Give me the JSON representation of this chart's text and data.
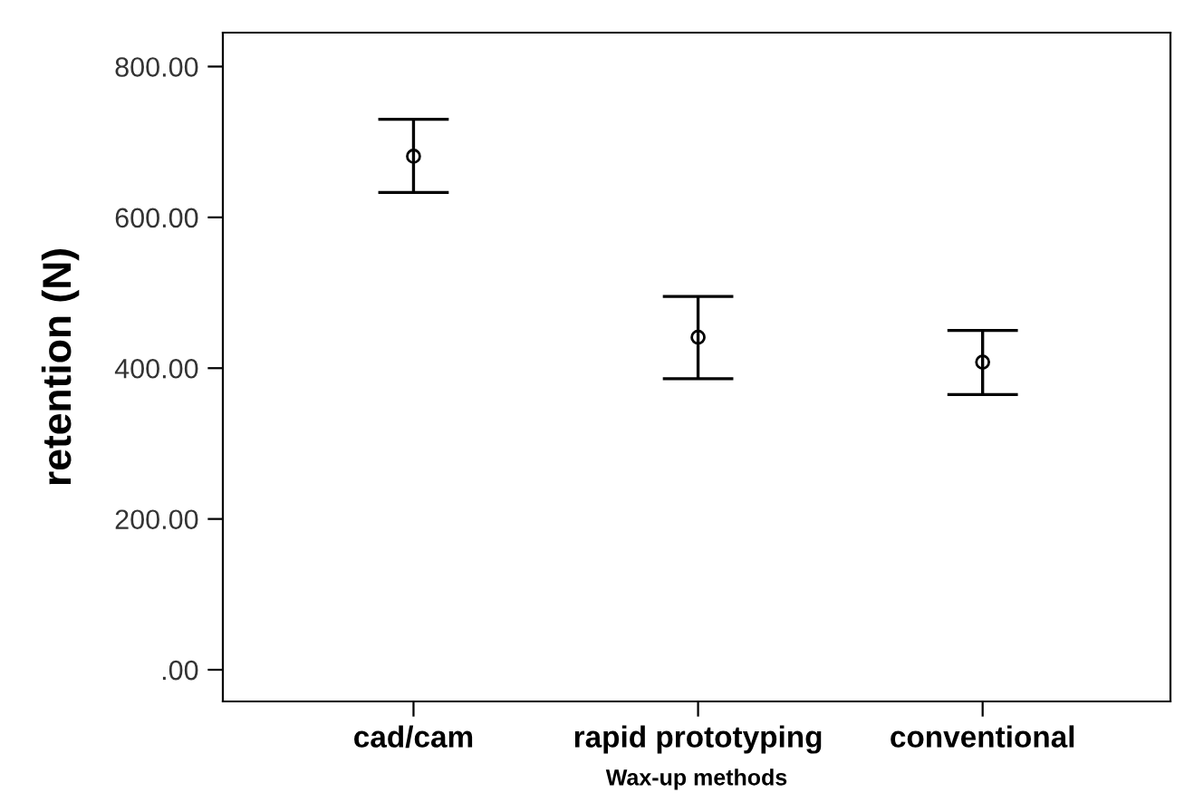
{
  "chart_data": {
    "type": "scatter",
    "xlabel": "Wax-up methods",
    "ylabel": "retention (N)",
    "categories": [
      "cad/cam",
      "rapid prototyping",
      "conventional"
    ],
    "series": [
      {
        "color": "#000000",
        "values": [
          681,
          441,
          408
        ],
        "errors": [
          [
            633,
            730
          ],
          [
            386,
            495
          ],
          [
            365,
            450
          ]
        ]
      }
    ],
    "marker": "circle",
    "ylim": [
      -42,
      845
    ],
    "yticks": [
      {
        "value": 0,
        "label": ".00"
      },
      {
        "value": 200,
        "label": "200.00"
      },
      {
        "value": 400,
        "label": "400.00"
      },
      {
        "value": 600,
        "label": "600.00"
      },
      {
        "value": 800,
        "label": "800.00"
      }
    ],
    "grid": false,
    "legend": false
  }
}
